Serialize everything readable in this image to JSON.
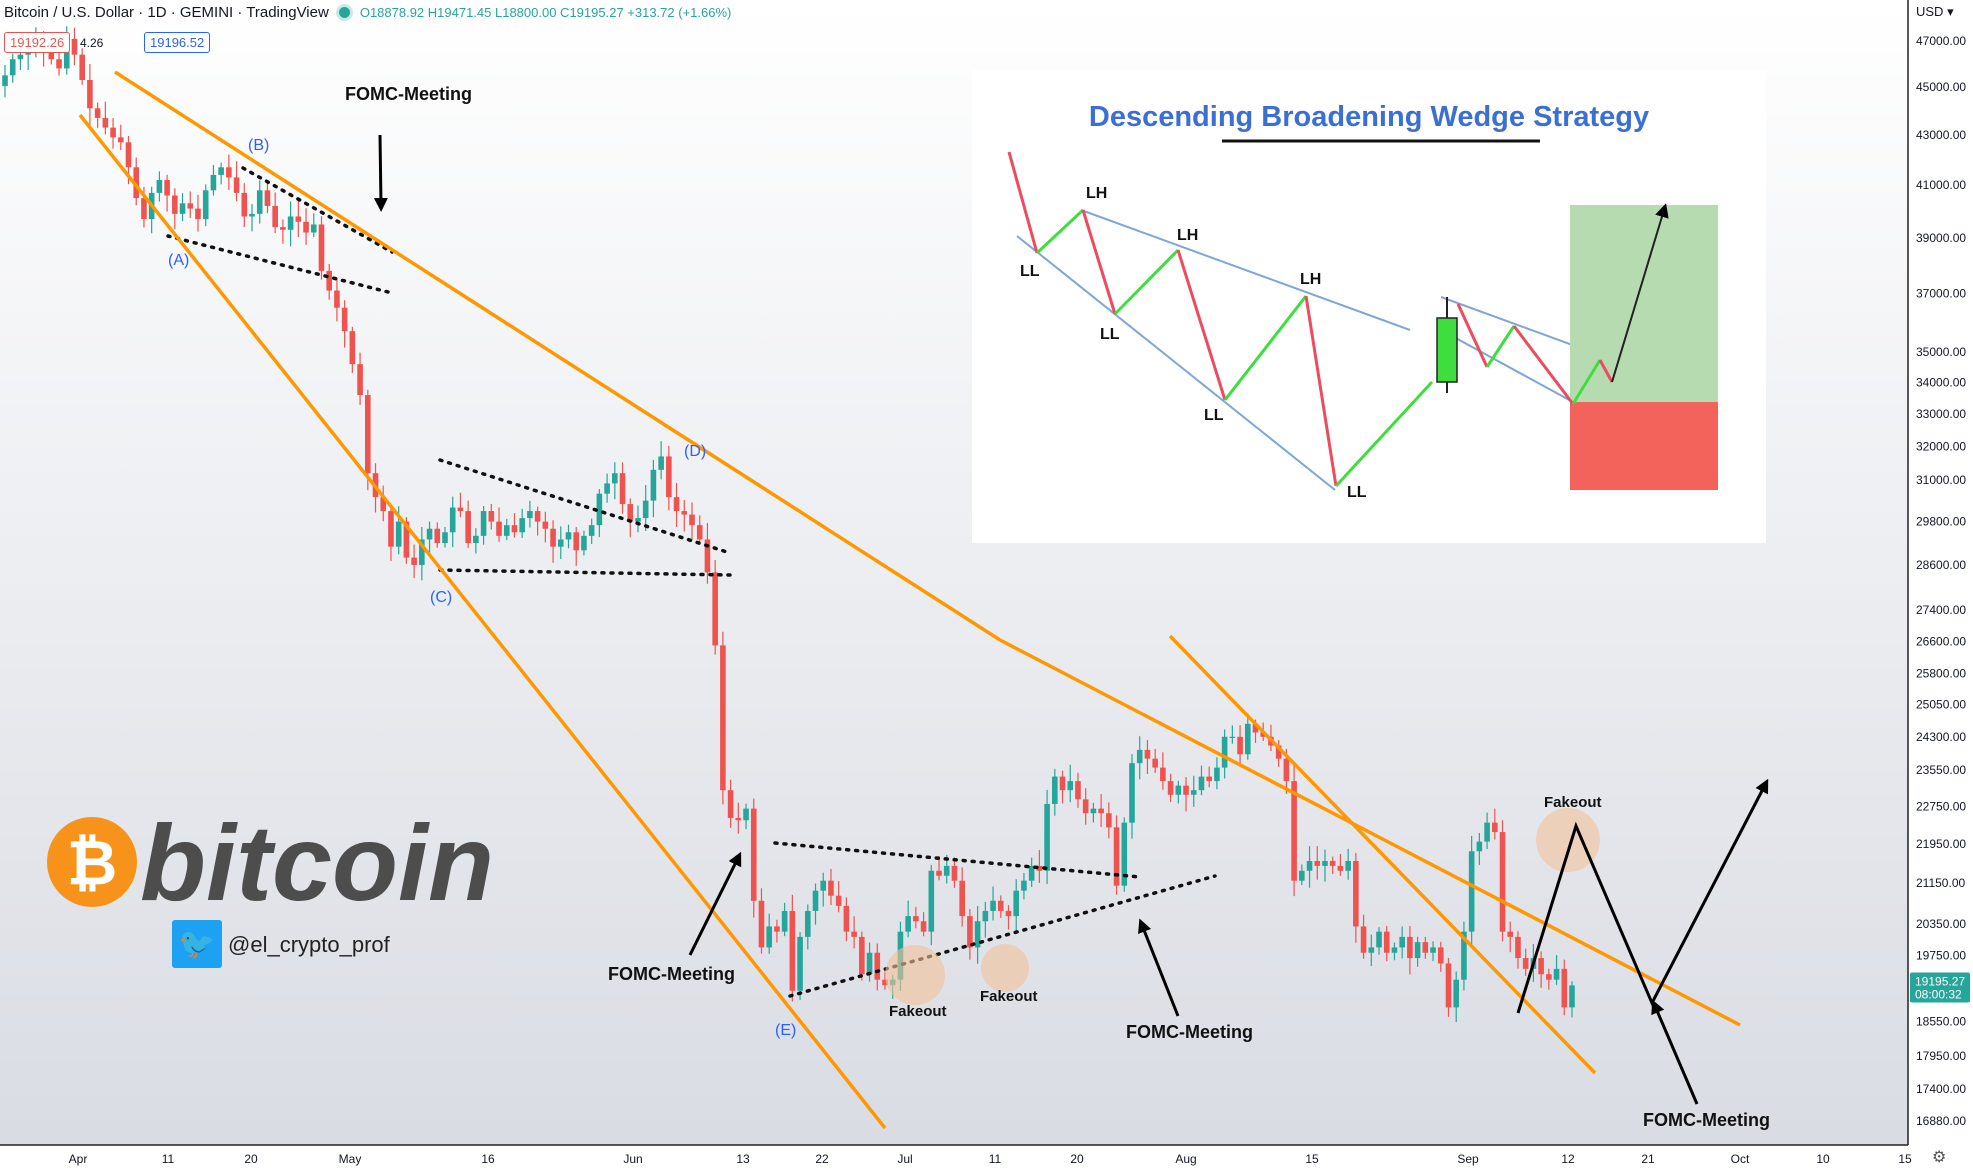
{
  "header": {
    "symbol": "Bitcoin / U.S. Dollar · 1D · GEMINI · TradingView",
    "ohlc": "O18878.92 H19471.45 L18800.00 C19195.27 +313.72 (+1.66%)",
    "sell_price": "19192.26",
    "spread": "4.26",
    "buy_price": "19196.52"
  },
  "price_axis": {
    "currency": "USD",
    "last_price": "19195.27",
    "countdown": "08:00:32"
  },
  "logo": {
    "text": "bitcoin",
    "symbol": "₿"
  },
  "social": {
    "handle": "@el_crypto_prof"
  },
  "colors": {
    "up": "#26a69a",
    "down": "#ef5350",
    "wedge": "#ff9800",
    "label_blue": "#2962ff",
    "fakeout_circle": "#f2c29a",
    "bitcoin_orange": "#f7931a"
  },
  "chart_data": {
    "type": "candlestick",
    "x_ticks": [
      "Apr",
      "11",
      "20",
      "May",
      "16",
      "Jun",
      "13",
      "22",
      "Jul",
      "11",
      "20",
      "Aug",
      "15",
      "Sep",
      "12",
      "21",
      "Oct",
      "10",
      "15"
    ],
    "y_ticks": [
      "47000.00",
      "45000.00",
      "43000.00",
      "41000.00",
      "39000.00",
      "37000.00",
      "35000.00",
      "34000.00",
      "33000.00",
      "32000.00",
      "31000.00",
      "29800.00",
      "28600.00",
      "27400.00",
      "26600.00",
      "25800.00",
      "25050.00",
      "24300.00",
      "23550.00",
      "22750.00",
      "21950.00",
      "21150.00",
      "20350.00",
      "19750.00",
      "18550.00",
      "17950.00",
      "17400.00",
      "16880.00"
    ],
    "ylim": [
      16500,
      48500
    ],
    "scale": "log",
    "grid": false,
    "closes": [
      45500,
      46200,
      46400,
      46700,
      47100,
      46500,
      46200,
      45800,
      47100,
      46400,
      45300,
      44100,
      43700,
      43300,
      42900,
      42700,
      41700,
      40500,
      39700,
      40700,
      41200,
      40600,
      39900,
      40300,
      40100,
      39700,
      40800,
      41400,
      41700,
      41300,
      40700,
      39800,
      39900,
      40800,
      40200,
      39400,
      39300,
      39800,
      39600,
      39200,
      39500,
      37800,
      37100,
      36500,
      35700,
      34600,
      33600,
      31200,
      30500,
      30100,
      29100,
      29800,
      28800,
      28600,
      29300,
      29600,
      29200,
      29500,
      30200,
      30100,
      29200,
      29400,
      30100,
      29800,
      29400,
      29700,
      29500,
      29900,
      30100,
      29800,
      29600,
      29100,
      29300,
      29500,
      29000,
      29400,
      29700,
      30600,
      30900,
      31200,
      30300,
      29800,
      29900,
      30400,
      31300,
      31700,
      30500,
      30100,
      30000,
      29700,
      29300,
      28400,
      26500,
      23100,
      22500,
      22450,
      22700,
      20800,
      19900,
      20300,
      20200,
      20600,
      19100,
      20100,
      20600,
      21000,
      21200,
      20900,
      20700,
      20200,
      20100,
      19400,
      19800,
      19300,
      19200,
      19300,
      20200,
      20500,
      20400,
      20200,
      21400,
      21300,
      21500,
      21200,
      20500,
      19900,
      20400,
      20600,
      20800,
      20600,
      20500,
      21000,
      21200,
      21500,
      21400,
      22800,
      23400,
      23100,
      23300,
      22900,
      22600,
      22700,
      22600,
      22300,
      21100,
      22400,
      23700,
      24000,
      23800,
      23600,
      23300,
      23000,
      23200,
      23000,
      23100,
      23400,
      23300,
      23600,
      24300,
      24300,
      23900,
      24600,
      24400,
      24300,
      24100,
      23800,
      23300,
      21200,
      21400,
      21600,
      21500,
      21600,
      21500,
      21400,
      21600,
      20300,
      19800,
      19900,
      20200,
      19800,
      19900,
      20100,
      19700,
      20000,
      19800,
      19900,
      19600,
      18800,
      19300,
      20200,
      21800,
      22000,
      22400,
      22200,
      20200,
      20100,
      19700,
      19500,
      19700,
      19400,
      19300,
      19500,
      18800,
      19195
    ],
    "annotations": [
      "(A)",
      "(B)",
      "(C)",
      "(D)",
      "(E)",
      "FOMC-Meeting",
      "FOMC-Meeting",
      "FOMC-Meeting",
      "FOMC-Meeting",
      "Fakeout",
      "Fakeout",
      "Fakeout"
    ],
    "inset": {
      "title": "Descending Broadening Wedge Strategy",
      "labels": [
        "LH",
        "LH",
        "LH",
        "LL",
        "LL",
        "LL",
        "LL"
      ]
    }
  }
}
